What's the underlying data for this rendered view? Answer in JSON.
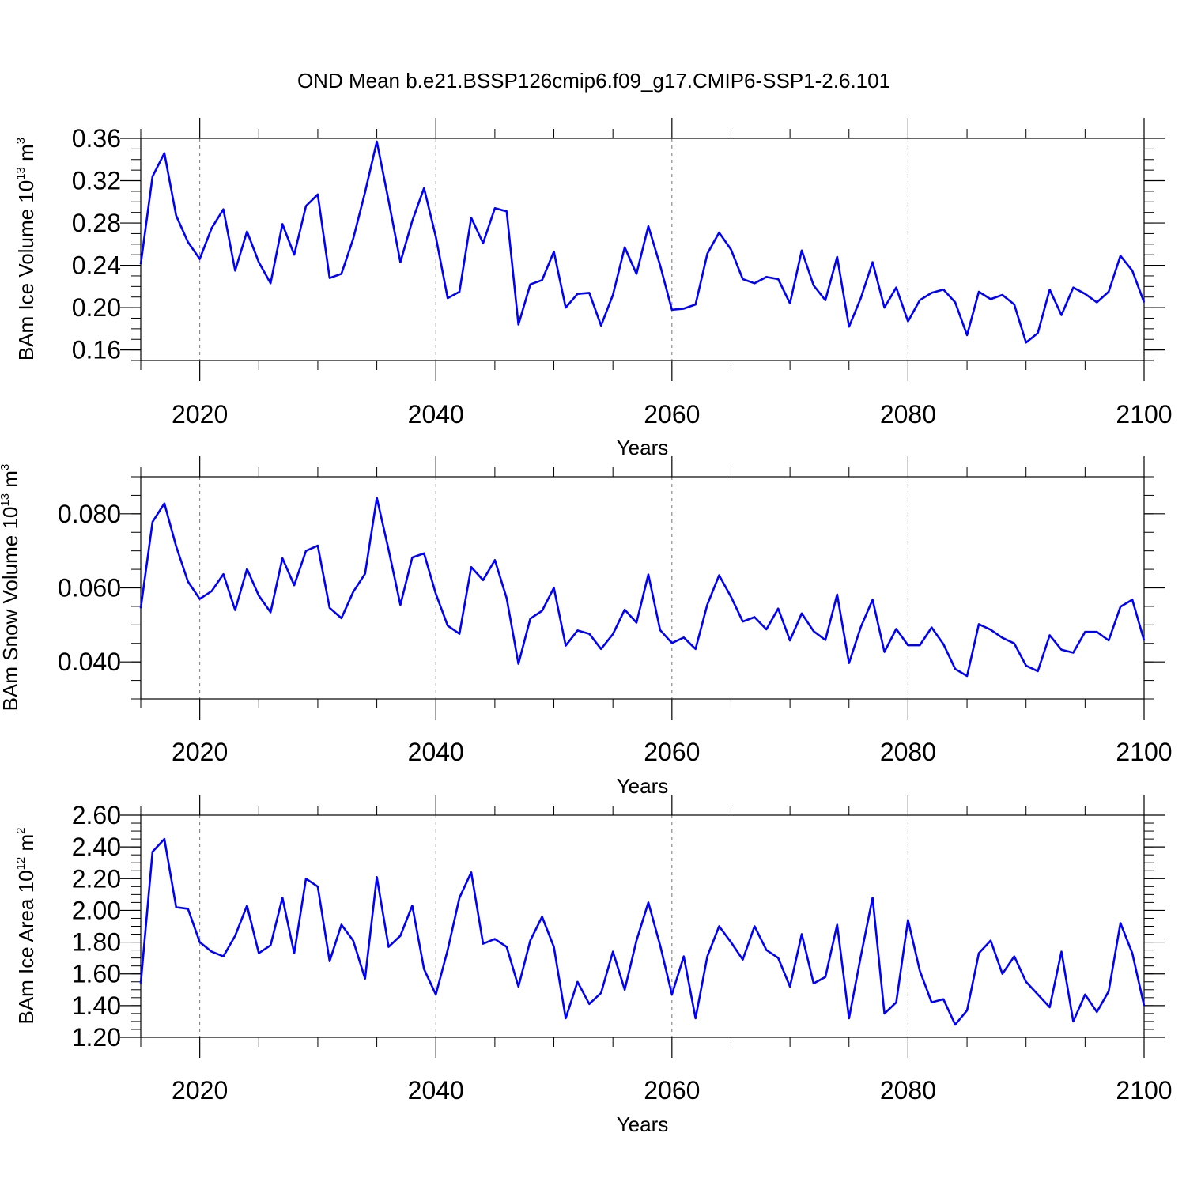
{
  "figure": {
    "title": "OND Mean b.e21.BSSP126cmip6.f09_g17.CMIP6-SSP1-2.6.101",
    "line_color": "#0000ff"
  },
  "chart_data": [
    {
      "type": "line",
      "ylabel": "BAm Ice Volume 10",
      "ylabel_exp": "13",
      "ylabel_unit": " m",
      "ylabel_unit_exp": "3",
      "xlabel": "Years",
      "xlim": [
        2015,
        2100
      ],
      "ylim": [
        0.15,
        0.36
      ],
      "yticks": [
        0.16,
        0.2,
        0.24,
        0.28,
        0.32,
        0.36
      ],
      "ytick_labels": [
        "0.16",
        "0.20",
        "0.24",
        "0.28",
        "0.32",
        "0.36"
      ],
      "xticks": [
        2020,
        2040,
        2060,
        2080,
        2100
      ],
      "xtick_labels": [
        "2020",
        "2040",
        "2060",
        "2080",
        "2100"
      ],
      "series": [
        {
          "name": "BAm Ice Volume",
          "x_start": 2015,
          "values": [
            0.241,
            0.324,
            0.346,
            0.287,
            0.262,
            0.246,
            0.275,
            0.293,
            0.235,
            0.272,
            0.243,
            0.223,
            0.279,
            0.25,
            0.296,
            0.307,
            0.228,
            0.232,
            0.265,
            0.309,
            0.357,
            0.301,
            0.243,
            0.282,
            0.313,
            0.267,
            0.209,
            0.215,
            0.285,
            0.261,
            0.294,
            0.291,
            0.184,
            0.222,
            0.226,
            0.253,
            0.2,
            0.213,
            0.214,
            0.183,
            0.212,
            0.257,
            0.232,
            0.277,
            0.24,
            0.198,
            0.199,
            0.203,
            0.251,
            0.271,
            0.255,
            0.227,
            0.223,
            0.229,
            0.227,
            0.204,
            0.254,
            0.221,
            0.207,
            0.248,
            0.182,
            0.209,
            0.243,
            0.2,
            0.219,
            0.187,
            0.207,
            0.214,
            0.217,
            0.205,
            0.174,
            0.215,
            0.208,
            0.212,
            0.203,
            0.167,
            0.176,
            0.217,
            0.193,
            0.219,
            0.213,
            0.205,
            0.215,
            0.249,
            0.235,
            0.205
          ]
        }
      ]
    },
    {
      "type": "line",
      "ylabel": "BAm Snow Volume 10",
      "ylabel_exp": "13",
      "ylabel_unit": " m",
      "ylabel_unit_exp": "3",
      "xlabel": "Years",
      "xlim": [
        2015,
        2100
      ],
      "ylim": [
        0.03,
        0.09
      ],
      "yticks": [
        0.04,
        0.06,
        0.08
      ],
      "ytick_labels": [
        "0.040",
        "0.060",
        "0.080"
      ],
      "xticks": [
        2020,
        2040,
        2060,
        2080,
        2100
      ],
      "xtick_labels": [
        "2020",
        "2040",
        "2060",
        "2080",
        "2100"
      ],
      "series": [
        {
          "name": "BAm Snow Volume",
          "x_start": 2015,
          "values": [
            0.0545,
            0.0778,
            0.0828,
            0.0712,
            0.0617,
            0.057,
            0.0591,
            0.0637,
            0.054,
            0.0651,
            0.0579,
            0.0534,
            0.068,
            0.0607,
            0.07,
            0.0714,
            0.0546,
            0.0518,
            0.0589,
            0.0638,
            0.0843,
            0.0703,
            0.0554,
            0.0682,
            0.0693,
            0.0584,
            0.0498,
            0.0476,
            0.0656,
            0.0621,
            0.0675,
            0.0572,
            0.0395,
            0.0517,
            0.0538,
            0.06,
            0.0444,
            0.0485,
            0.0476,
            0.0435,
            0.0475,
            0.0541,
            0.0506,
            0.0636,
            0.0486,
            0.0451,
            0.0466,
            0.0435,
            0.0555,
            0.0634,
            0.0576,
            0.0509,
            0.0521,
            0.0488,
            0.0544,
            0.0458,
            0.0531,
            0.0483,
            0.0459,
            0.0582,
            0.0397,
            0.0494,
            0.0568,
            0.0427,
            0.0489,
            0.0445,
            0.0445,
            0.0493,
            0.0448,
            0.0381,
            0.0362,
            0.0502,
            0.0487,
            0.0465,
            0.045,
            0.039,
            0.0375,
            0.0472,
            0.0433,
            0.0425,
            0.0481,
            0.0481,
            0.0458,
            0.0549,
            0.0568,
            0.0458
          ]
        }
      ]
    },
    {
      "type": "line",
      "ylabel": "BAm Ice Area 10",
      "ylabel_exp": "12",
      "ylabel_unit": " m",
      "ylabel_unit_exp": "2",
      "xlabel": "Years",
      "xlim": [
        2015,
        2100
      ],
      "ylim": [
        1.2,
        2.6
      ],
      "yticks": [
        1.2,
        1.4,
        1.6,
        1.8,
        2.0,
        2.2,
        2.4,
        2.6
      ],
      "ytick_labels": [
        "1.20",
        "1.40",
        "1.60",
        "1.80",
        "2.00",
        "2.20",
        "2.40",
        "2.60"
      ],
      "xticks": [
        2020,
        2040,
        2060,
        2080,
        2100
      ],
      "xtick_labels": [
        "2020",
        "2040",
        "2060",
        "2080",
        "2100"
      ],
      "series": [
        {
          "name": "BAm Ice Area",
          "x_start": 2015,
          "values": [
            1.54,
            2.37,
            2.45,
            2.02,
            2.01,
            1.8,
            1.74,
            1.71,
            1.84,
            2.03,
            1.73,
            1.78,
            2.08,
            1.73,
            2.2,
            2.15,
            1.68,
            1.91,
            1.81,
            1.57,
            2.21,
            1.77,
            1.84,
            2.03,
            1.63,
            1.47,
            1.75,
            2.08,
            2.24,
            1.79,
            1.82,
            1.77,
            1.52,
            1.81,
            1.96,
            1.77,
            1.32,
            1.55,
            1.41,
            1.48,
            1.74,
            1.5,
            1.81,
            2.05,
            1.78,
            1.47,
            1.71,
            1.32,
            1.71,
            1.9,
            1.8,
            1.69,
            1.9,
            1.75,
            1.7,
            1.52,
            1.85,
            1.54,
            1.58,
            1.91,
            1.32,
            1.71,
            2.08,
            1.35,
            1.42,
            1.94,
            1.62,
            1.42,
            1.44,
            1.28,
            1.37,
            1.73,
            1.81,
            1.6,
            1.71,
            1.55,
            1.47,
            1.39,
            1.74,
            1.3,
            1.47,
            1.36,
            1.49,
            1.92,
            1.73,
            1.4
          ]
        }
      ]
    }
  ]
}
